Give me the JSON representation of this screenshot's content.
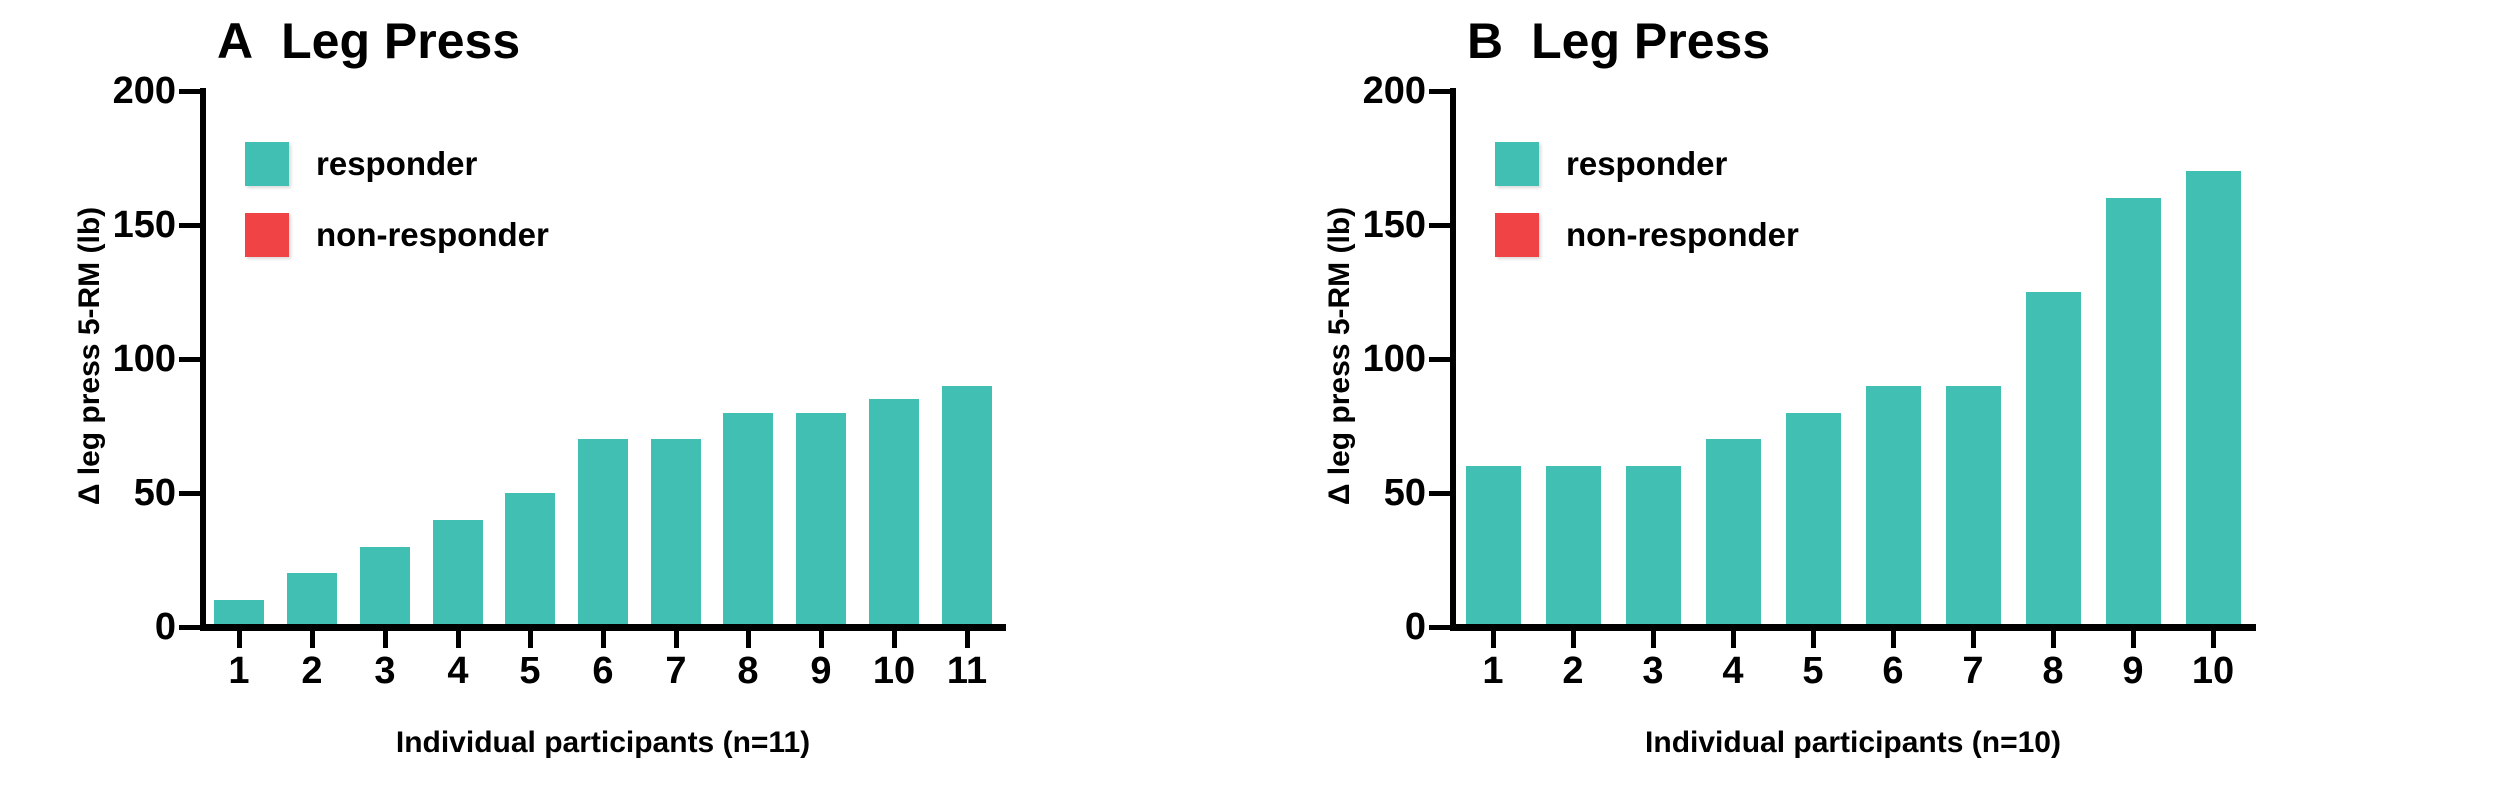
{
  "figure": {
    "background": "#ffffff",
    "axis_color": "#000000",
    "text_color": "#000000"
  },
  "legend_shared": {
    "responder_label": "responder",
    "non_responder_label": "non-responder",
    "responder_color": "#41bfb3",
    "non_responder_color": "#f04345"
  },
  "chart_data": [
    {
      "type": "bar",
      "panel_label": "A",
      "title": "Leg Press",
      "ylabel": "Δ leg press 5-RM (lb)",
      "xlabel": "Individual participants (n=11)",
      "categories": [
        "1",
        "2",
        "3",
        "4",
        "5",
        "6",
        "7",
        "8",
        "9",
        "10",
        "11"
      ],
      "values": [
        10,
        20,
        30,
        40,
        50,
        70,
        70,
        80,
        80,
        85,
        90
      ],
      "series_name": "responder",
      "bar_color": "#41bfb3",
      "ylim": [
        0,
        200
      ],
      "yticks": [
        0,
        50,
        100,
        150,
        200
      ],
      "grid": false,
      "legend_position": "upper-left-inside",
      "legend": [
        {
          "label": "responder",
          "color": "#41bfb3"
        },
        {
          "label": "non-responder",
          "color": "#f04345"
        }
      ]
    },
    {
      "type": "bar",
      "panel_label": "B",
      "title": "Leg Press",
      "ylabel": "Δ leg press 5-RM (lb)",
      "xlabel": "Individual participants (n=10)",
      "categories": [
        "1",
        "2",
        "3",
        "4",
        "5",
        "6",
        "7",
        "8",
        "9",
        "10"
      ],
      "values": [
        60,
        60,
        60,
        70,
        80,
        90,
        90,
        125,
        160,
        170
      ],
      "series_name": "responder",
      "bar_color": "#41bfb3",
      "ylim": [
        0,
        200
      ],
      "yticks": [
        0,
        50,
        100,
        150,
        200
      ],
      "grid": false,
      "legend_position": "upper-left-inside",
      "legend": [
        {
          "label": "responder",
          "color": "#41bfb3"
        },
        {
          "label": "non-responder",
          "color": "#f04345"
        }
      ]
    }
  ]
}
